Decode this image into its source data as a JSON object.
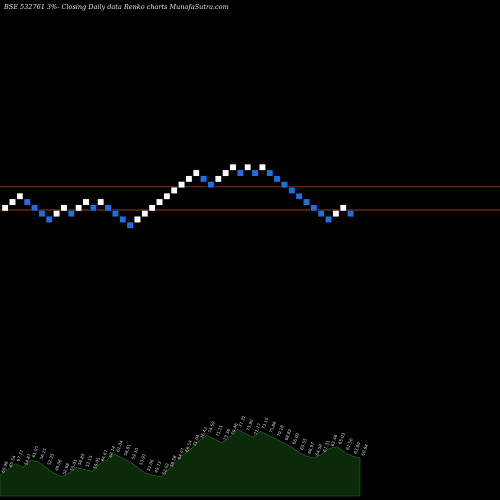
{
  "header": {
    "title": "BSE 532761 3%-  Closing Daily data  Renko  charts MunafaSutra.com"
  },
  "colors": {
    "background": "#000000",
    "up_brick": "#ffffff",
    "down_brick": "#1e6fe0",
    "level_line": "#9b3a1c",
    "volume_fill": "#0a2a0a",
    "volume_stroke": "#2a6a2a"
  },
  "chart_data": {
    "type": "renko",
    "title": "BSE 532761 3%-  Closing Daily data  Renko  charts MunafaSutra.com",
    "bricks": [
      {
        "level": 0,
        "dir": "up"
      },
      {
        "level": 1,
        "dir": "up"
      },
      {
        "level": 2,
        "dir": "up"
      },
      {
        "level": 1,
        "dir": "down"
      },
      {
        "level": 0,
        "dir": "down"
      },
      {
        "level": -1,
        "dir": "down"
      },
      {
        "level": -2,
        "dir": "down"
      },
      {
        "level": -1,
        "dir": "up"
      },
      {
        "level": 0,
        "dir": "up"
      },
      {
        "level": -1,
        "dir": "down"
      },
      {
        "level": 0,
        "dir": "up"
      },
      {
        "level": 1,
        "dir": "up"
      },
      {
        "level": 0,
        "dir": "down"
      },
      {
        "level": 1,
        "dir": "up"
      },
      {
        "level": 0,
        "dir": "down"
      },
      {
        "level": -1,
        "dir": "down"
      },
      {
        "level": -2,
        "dir": "down"
      },
      {
        "level": -3,
        "dir": "down"
      },
      {
        "level": -2,
        "dir": "up"
      },
      {
        "level": -1,
        "dir": "up"
      },
      {
        "level": 0,
        "dir": "up"
      },
      {
        "level": 1,
        "dir": "up"
      },
      {
        "level": 2,
        "dir": "up"
      },
      {
        "level": 3,
        "dir": "up"
      },
      {
        "level": 4,
        "dir": "up"
      },
      {
        "level": 5,
        "dir": "up"
      },
      {
        "level": 6,
        "dir": "up"
      },
      {
        "level": 5,
        "dir": "down"
      },
      {
        "level": 4,
        "dir": "down"
      },
      {
        "level": 5,
        "dir": "up"
      },
      {
        "level": 6,
        "dir": "up"
      },
      {
        "level": 7,
        "dir": "up"
      },
      {
        "level": 6,
        "dir": "down"
      },
      {
        "level": 7,
        "dir": "up"
      },
      {
        "level": 6,
        "dir": "down"
      },
      {
        "level": 7,
        "dir": "up"
      },
      {
        "level": 6,
        "dir": "down"
      },
      {
        "level": 5,
        "dir": "down"
      },
      {
        "level": 4,
        "dir": "down"
      },
      {
        "level": 3,
        "dir": "down"
      },
      {
        "level": 2,
        "dir": "down"
      },
      {
        "level": 1,
        "dir": "down"
      },
      {
        "level": 0,
        "dir": "down"
      },
      {
        "level": -1,
        "dir": "down"
      },
      {
        "level": -2,
        "dir": "down"
      },
      {
        "level": -1,
        "dir": "up"
      },
      {
        "level": 0,
        "dir": "up"
      },
      {
        "level": -1,
        "dir": "down"
      }
    ],
    "level_lines": [
      4,
      0
    ],
    "volume_profile": [
      22,
      28,
      34,
      30,
      38,
      36,
      30,
      24,
      20,
      24,
      30,
      28,
      26,
      34,
      38,
      44,
      40,
      36,
      30,
      24,
      22,
      20,
      28,
      36,
      44,
      50,
      58,
      64,
      60,
      56,
      62,
      70,
      66,
      62,
      68,
      64,
      60,
      56,
      52,
      46,
      42,
      40,
      44,
      50,
      52,
      46,
      42,
      40
    ],
    "volume_labels": [
      "60.96",
      "65.54",
      "67.77",
      "54.87",
      "61.07",
      "56.21",
      "52.35",
      "49.06",
      "52.68",
      "55.01",
      "56.80",
      "52.15",
      "59.05",
      "64.67",
      "68.14",
      "62.04",
      "58.81",
      "59.10",
      "53.91",
      "51.06",
      "49.73",
      "52.02",
      "58.58",
      "64.07",
      "68.54",
      "71.04",
      "76.42",
      "74.59",
      "71.11",
      "73.36",
      "79.46",
      "77.32",
      "73.90",
      "71.77",
      "73.15",
      "75.86",
      "70.28",
      "68.82",
      "66.02",
      "65.55",
      "68.97",
      "64.58",
      "67.31",
      "62.46",
      "65.03",
      "61.50",
      "63.80",
      "60.94"
    ]
  }
}
